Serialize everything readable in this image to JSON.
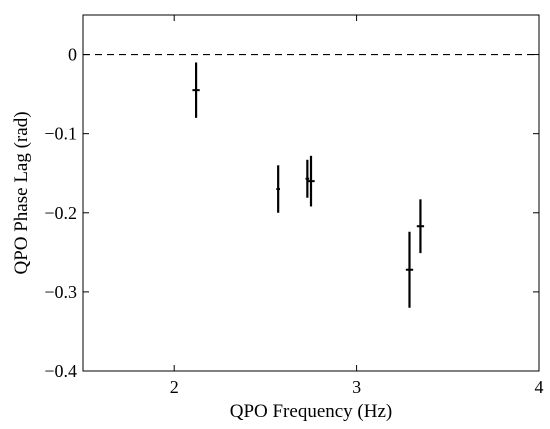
{
  "chart_data": {
    "type": "scatter",
    "xlabel": "QPO Frequency (Hz)",
    "ylabel": "QPO Phase Lag (rad)",
    "xlim": [
      1.5,
      4
    ],
    "ylim": [
      -0.4,
      0.05
    ],
    "xticks": [
      2,
      3,
      4
    ],
    "xtick_labels": [
      "2",
      "3",
      "4"
    ],
    "yticks": [
      0,
      -0.1,
      -0.2,
      -0.3,
      -0.4
    ],
    "ytick_labels": [
      "0",
      "−0.1",
      "−0.2",
      "−0.3",
      "−0.4"
    ],
    "reference_line": {
      "y": 0,
      "style": "dashed"
    },
    "grid": false,
    "points": [
      {
        "x": 2.12,
        "y": -0.045,
        "yerr": 0.035,
        "xerr": 0.02
      },
      {
        "x": 2.57,
        "y": -0.17,
        "yerr": 0.03,
        "xerr": 0.01
      },
      {
        "x": 2.73,
        "y": -0.157,
        "yerr": 0.024,
        "xerr": 0.01
      },
      {
        "x": 2.75,
        "y": -0.16,
        "yerr": 0.032,
        "xerr": 0.02
      },
      {
        "x": 3.29,
        "y": -0.272,
        "yerr": 0.048,
        "xerr": 0.02
      },
      {
        "x": 3.35,
        "y": -0.217,
        "yerr": 0.034,
        "xerr": 0.02
      }
    ]
  }
}
